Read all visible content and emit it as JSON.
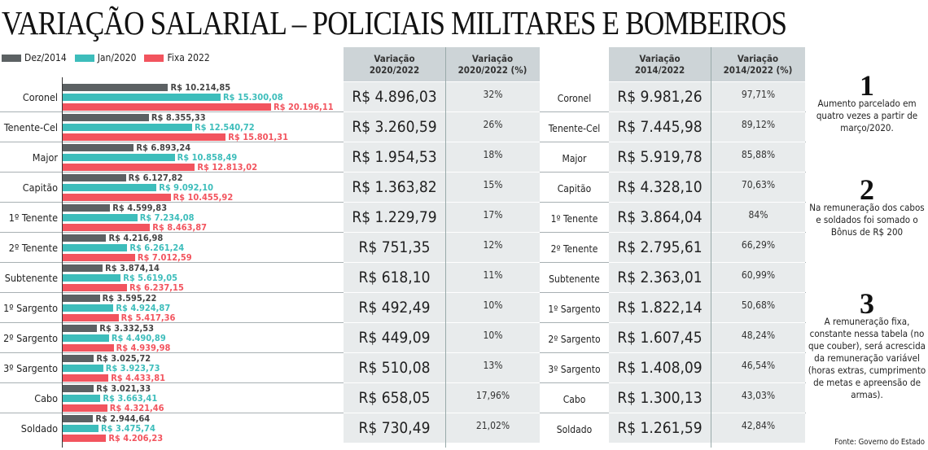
{
  "title": "VARIAÇÃO SALARIAL – POLICIAIS MILITARES E BOMBEIROS",
  "colors": {
    "dez2014": "#5c6163",
    "jan2020": "#3dbdbb",
    "fixa2022": "#f2545e"
  },
  "legend": [
    "Dez/2014",
    "Jan/2020",
    "Fixa 2022"
  ],
  "chart_data": {
    "type": "bar",
    "orientation": "horizontal",
    "title": "VARIAÇÃO SALARIAL – POLICIAIS MILITARES E BOMBEIROS",
    "categories": [
      "Coronel",
      "Tenente-Cel",
      "Major",
      "Capitão",
      "1º Tenente",
      "2º Tenente",
      "Subtenente",
      "1º Sargento",
      "2º Sargento",
      "3º Sargento",
      "Cabo",
      "Soldado"
    ],
    "series": [
      {
        "name": "Dez/2014",
        "values": [
          10214.85,
          8355.33,
          6893.24,
          6127.82,
          4599.83,
          4216.98,
          3874.14,
          3595.22,
          3332.53,
          3025.72,
          3021.33,
          2944.64
        ],
        "labels": [
          "R$ 10.214,85",
          "R$ 8.355,33",
          "R$ 6.893,24",
          "R$ 6.127,82",
          "R$ 4.599,83",
          "R$ 4.216,98",
          "R$ 3.874,14",
          "R$ 3.595,22",
          "R$ 3.332,53",
          "R$ 3.025,72",
          "R$ 3.021,33",
          "R$ 2.944,64"
        ]
      },
      {
        "name": "Jan/2020",
        "values": [
          15300.08,
          12540.72,
          10858.49,
          9092.1,
          7234.08,
          6261.24,
          5619.05,
          4924.87,
          4490.89,
          3923.73,
          3663.41,
          3475.74
        ],
        "labels": [
          "R$ 15.300,08",
          "R$ 12.540,72",
          "R$ 10.858,49",
          "R$ 9.092,10",
          "R$ 7.234,08",
          "R$ 6.261,24",
          "R$ 5.619,05",
          "R$ 4.924,87",
          "R$ 4.490,89",
          "R$ 3.923,73",
          "R$ 3.663,41",
          "R$ 3.475,74"
        ]
      },
      {
        "name": "Fixa 2022",
        "values": [
          20196.11,
          15801.31,
          12813.02,
          10455.92,
          8463.87,
          7012.59,
          6237.15,
          5417.36,
          4939.98,
          4433.81,
          4321.46,
          4206.23
        ],
        "labels": [
          "R$ 20.196,11",
          "R$ 15.801,31",
          "R$ 12.813,02",
          "R$ 10.455,92",
          "R$ 8.463,87",
          "R$ 7.012,59",
          "R$ 6.237,15",
          "R$ 5.417,36",
          "R$ 4.939,98",
          "R$ 4.433,81",
          "R$ 4.321,46",
          "R$ 4.206,23"
        ]
      }
    ],
    "xlim": [
      0,
      20196.11
    ],
    "legend": "top-left",
    "grid": false
  },
  "table1": {
    "headers": [
      "Variação\n2020/2022",
      "Variação\n2020/2022 (%)"
    ],
    "values": [
      "R$ 4.896,03",
      "R$ 3.260,59",
      "R$ 1.954,53",
      "R$ 1.363,82",
      "R$ 1.229,79",
      "R$ 751,35",
      "R$ 618,10",
      "R$ 492,49",
      "R$ 449,09",
      "R$ 510,08",
      "R$ 658,05",
      "R$ 730,49"
    ],
    "pcts": [
      "32%",
      "26%",
      "18%",
      "15%",
      "17%",
      "12%",
      "11%",
      "10%",
      "10%",
      "13%",
      "17,96%",
      "21,02%"
    ]
  },
  "table2": {
    "headers": [
      "Variação\n2014/2022",
      "Variação\n2014/2022 (%)"
    ],
    "values": [
      "R$ 9.981,26",
      "R$ 7.445,98",
      "R$ 5.919,78",
      "R$ 4.328,10",
      "R$ 3.864,04",
      "R$ 2.795,61",
      "R$ 2.363,01",
      "R$ 1.822,14",
      "R$ 1.607,45",
      "R$ 1.408,09",
      "R$ 1.300,13",
      "R$ 1.261,59"
    ],
    "pcts": [
      "97,71%",
      "89,12%",
      "85,88%",
      "70,63%",
      "84%",
      "66,29%",
      "60,99%",
      "50,68%",
      "48,24%",
      "46,54%",
      "43,03%",
      "42,84%"
    ]
  },
  "notes": [
    {
      "num": "1",
      "text": "Aumento parcelado em quatro vezes a partir de março/2020."
    },
    {
      "num": "2",
      "text": "Na remuneração dos cabos e soldados foi somado o Bônus de R$ 200"
    },
    {
      "num": "3",
      "text": "A remuneração fixa, constante nessa tabela (no que couber), será acrescida da remuneração variável (horas extras, cumprimento de metas e apreensão de armas)."
    }
  ],
  "source": "Fonte: Governo do Estado"
}
